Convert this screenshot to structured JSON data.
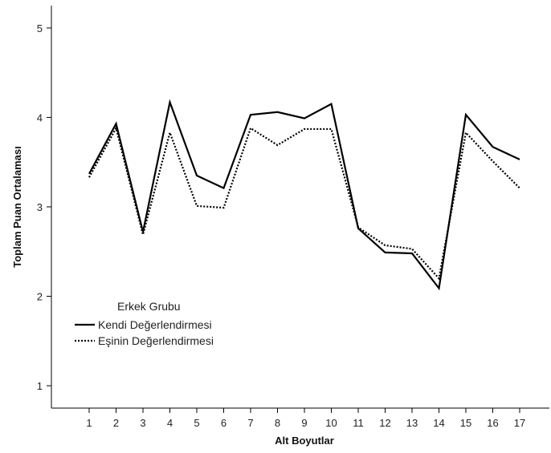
{
  "chart_data": {
    "type": "line",
    "xlabel": "Alt Boyutlar",
    "ylabel": "Toplam Puan Ortalaması",
    "x": [
      "1",
      "2",
      "3",
      "4",
      "5",
      "6",
      "7",
      "8",
      "9",
      "10",
      "11",
      "12",
      "13",
      "14",
      "15",
      "16",
      "17"
    ],
    "yticks": [
      "1",
      "2",
      "3",
      "4",
      "5"
    ],
    "ylim": [
      0.75,
      5.25
    ],
    "grid": false,
    "legend": {
      "title": "Erkek Grubu",
      "placement": "center-left"
    },
    "series": [
      {
        "name": "Kendi Değerlendirmesi",
        "style": "solid",
        "color": "#000000",
        "values": [
          3.37,
          3.93,
          2.72,
          4.17,
          3.35,
          3.21,
          4.03,
          4.06,
          3.99,
          4.15,
          2.76,
          2.49,
          2.48,
          2.09,
          4.03,
          3.67,
          3.53
        ]
      },
      {
        "name": "Eşinin Değerlendirmesi",
        "style": "dotted",
        "color": "#000000",
        "values": [
          3.33,
          3.88,
          2.69,
          3.83,
          3.01,
          2.99,
          3.88,
          3.69,
          3.87,
          3.87,
          2.77,
          2.57,
          2.53,
          2.2,
          3.83,
          3.51,
          3.21
        ]
      }
    ]
  }
}
